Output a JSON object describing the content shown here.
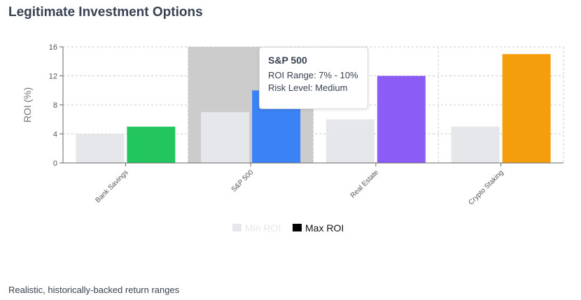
{
  "page": {
    "title": "Legitimate Investment Options",
    "subtitle": "Realistic, historically-backed return ranges"
  },
  "tooltip": {
    "title": "S&P 500",
    "roi_range": "ROI Range: 7% - 10%",
    "risk_level": "Risk Level: Medium"
  },
  "chart_data": {
    "type": "bar",
    "title": "",
    "xlabel": "",
    "ylabel": "ROI (%)",
    "ylim": [
      0,
      16
    ],
    "yticks": [
      0,
      4,
      8,
      12,
      16
    ],
    "grid": true,
    "legend_position": "bottom",
    "categories": [
      "Bank Savings",
      "S&P 500",
      "Real Estate",
      "Crypto Staking"
    ],
    "series": [
      {
        "name": "Min ROI",
        "values": [
          4,
          7,
          6,
          5
        ],
        "colors": [
          "#e5e7eb",
          "#e5e7eb",
          "#e5e7eb",
          "#e5e7eb"
        ]
      },
      {
        "name": "Max ROI",
        "values": [
          5,
          10,
          12,
          15
        ],
        "colors": [
          "#22c55e",
          "#3b82f6",
          "#8b5cf6",
          "#f59e0b"
        ]
      }
    ],
    "legend": [
      {
        "name": "Min ROI",
        "swatch": "#e5e7eb",
        "text_color": "#e5e7eb"
      },
      {
        "name": "Max ROI",
        "swatch": "#000000",
        "text_color": "#111111"
      }
    ],
    "highlight_category": "S&P 500",
    "highlight_color": "#cccccc"
  }
}
